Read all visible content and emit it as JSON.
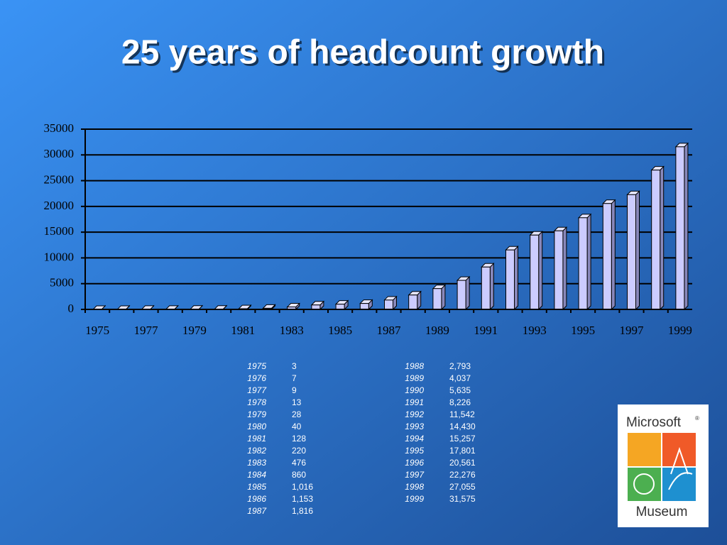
{
  "chart_data": {
    "type": "bar",
    "title": "25 years of headcount growth",
    "categories": [
      "1975",
      "1976",
      "1977",
      "1978",
      "1979",
      "1980",
      "1981",
      "1982",
      "1983",
      "1984",
      "1985",
      "1986",
      "1987",
      "1988",
      "1989",
      "1990",
      "1991",
      "1992",
      "1993",
      "1994",
      "1995",
      "1996",
      "1997",
      "1998",
      "1999"
    ],
    "values": [
      3,
      7,
      9,
      13,
      28,
      40,
      128,
      220,
      476,
      860,
      1016,
      1153,
      1816,
      2793,
      4037,
      5635,
      8226,
      11542,
      14430,
      15257,
      17801,
      20561,
      22276,
      27055,
      31575
    ],
    "value_labels": [
      "3",
      "7",
      "9",
      "13",
      "28",
      "40",
      "128",
      "220",
      "476",
      "860",
      "1,016",
      "1,153",
      "1,816",
      "2,793",
      "4,037",
      "5,635",
      "8,226",
      "11,542",
      "14,430",
      "15,257",
      "17,801",
      "20,561",
      "22,276",
      "27,055",
      "31,575"
    ],
    "color": "#ccccff",
    "ylim": [
      0,
      35000
    ],
    "yticks": [
      0,
      5000,
      10000,
      15000,
      20000,
      25000,
      30000,
      35000
    ],
    "grid": true
  },
  "logo": {
    "top": "Microsoft",
    "mark": "®",
    "bottom": "Museum"
  }
}
